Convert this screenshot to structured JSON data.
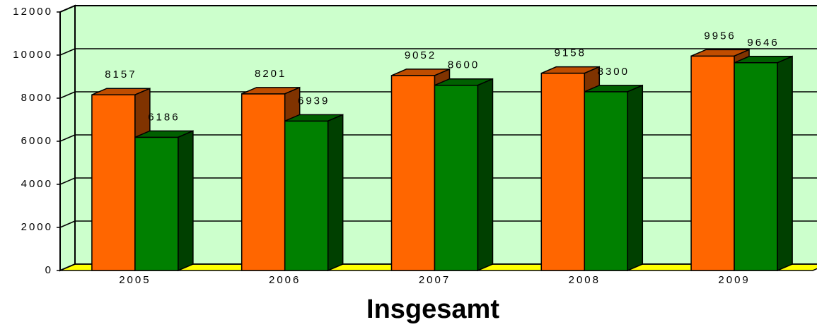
{
  "chart_data": {
    "type": "bar3d",
    "title": "Insgesamt",
    "categories": [
      "2005",
      "2006",
      "2007",
      "2008",
      "2009"
    ],
    "series": [
      {
        "color": "#ff6600",
        "values": [
          8157,
          8201,
          9052,
          9158,
          9956
        ]
      },
      {
        "color": "#008000",
        "values": [
          6186,
          6939,
          8600,
          8300,
          9646
        ]
      }
    ],
    "ylim": [
      0,
      12000
    ],
    "yticks": [
      0,
      2000,
      4000,
      6000,
      8000,
      10000,
      12000
    ],
    "grid": true
  }
}
